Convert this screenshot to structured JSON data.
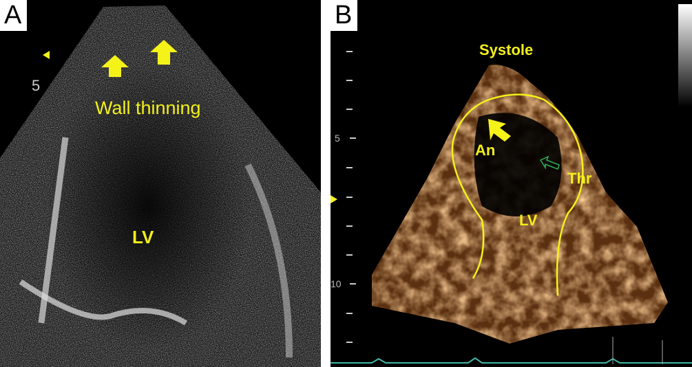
{
  "panels": [
    {
      "letter": "A",
      "labels": {
        "wall": "Wall thinning",
        "lv": "LV"
      },
      "scale_mark": "5",
      "arrows": [
        "arrow-up-icon",
        "arrow-up-icon"
      ],
      "colors": {
        "annotation": "#f2ef1a",
        "tissue": "#b0b0b0"
      }
    },
    {
      "letter": "B",
      "labels": {
        "phase": "Systole",
        "an": "An",
        "thr": "Thr",
        "lv": "LV"
      },
      "scale_marks": [
        "5",
        "10"
      ],
      "arrows": [
        "arrow-up-left-icon",
        "outline-arrow-left-icon"
      ],
      "colors": {
        "annotation": "#f2ef1a",
        "tissue": "#c9803a",
        "thrombus_arrow": "#2fae5a",
        "ecg": "#3fb6a8"
      }
    }
  ]
}
